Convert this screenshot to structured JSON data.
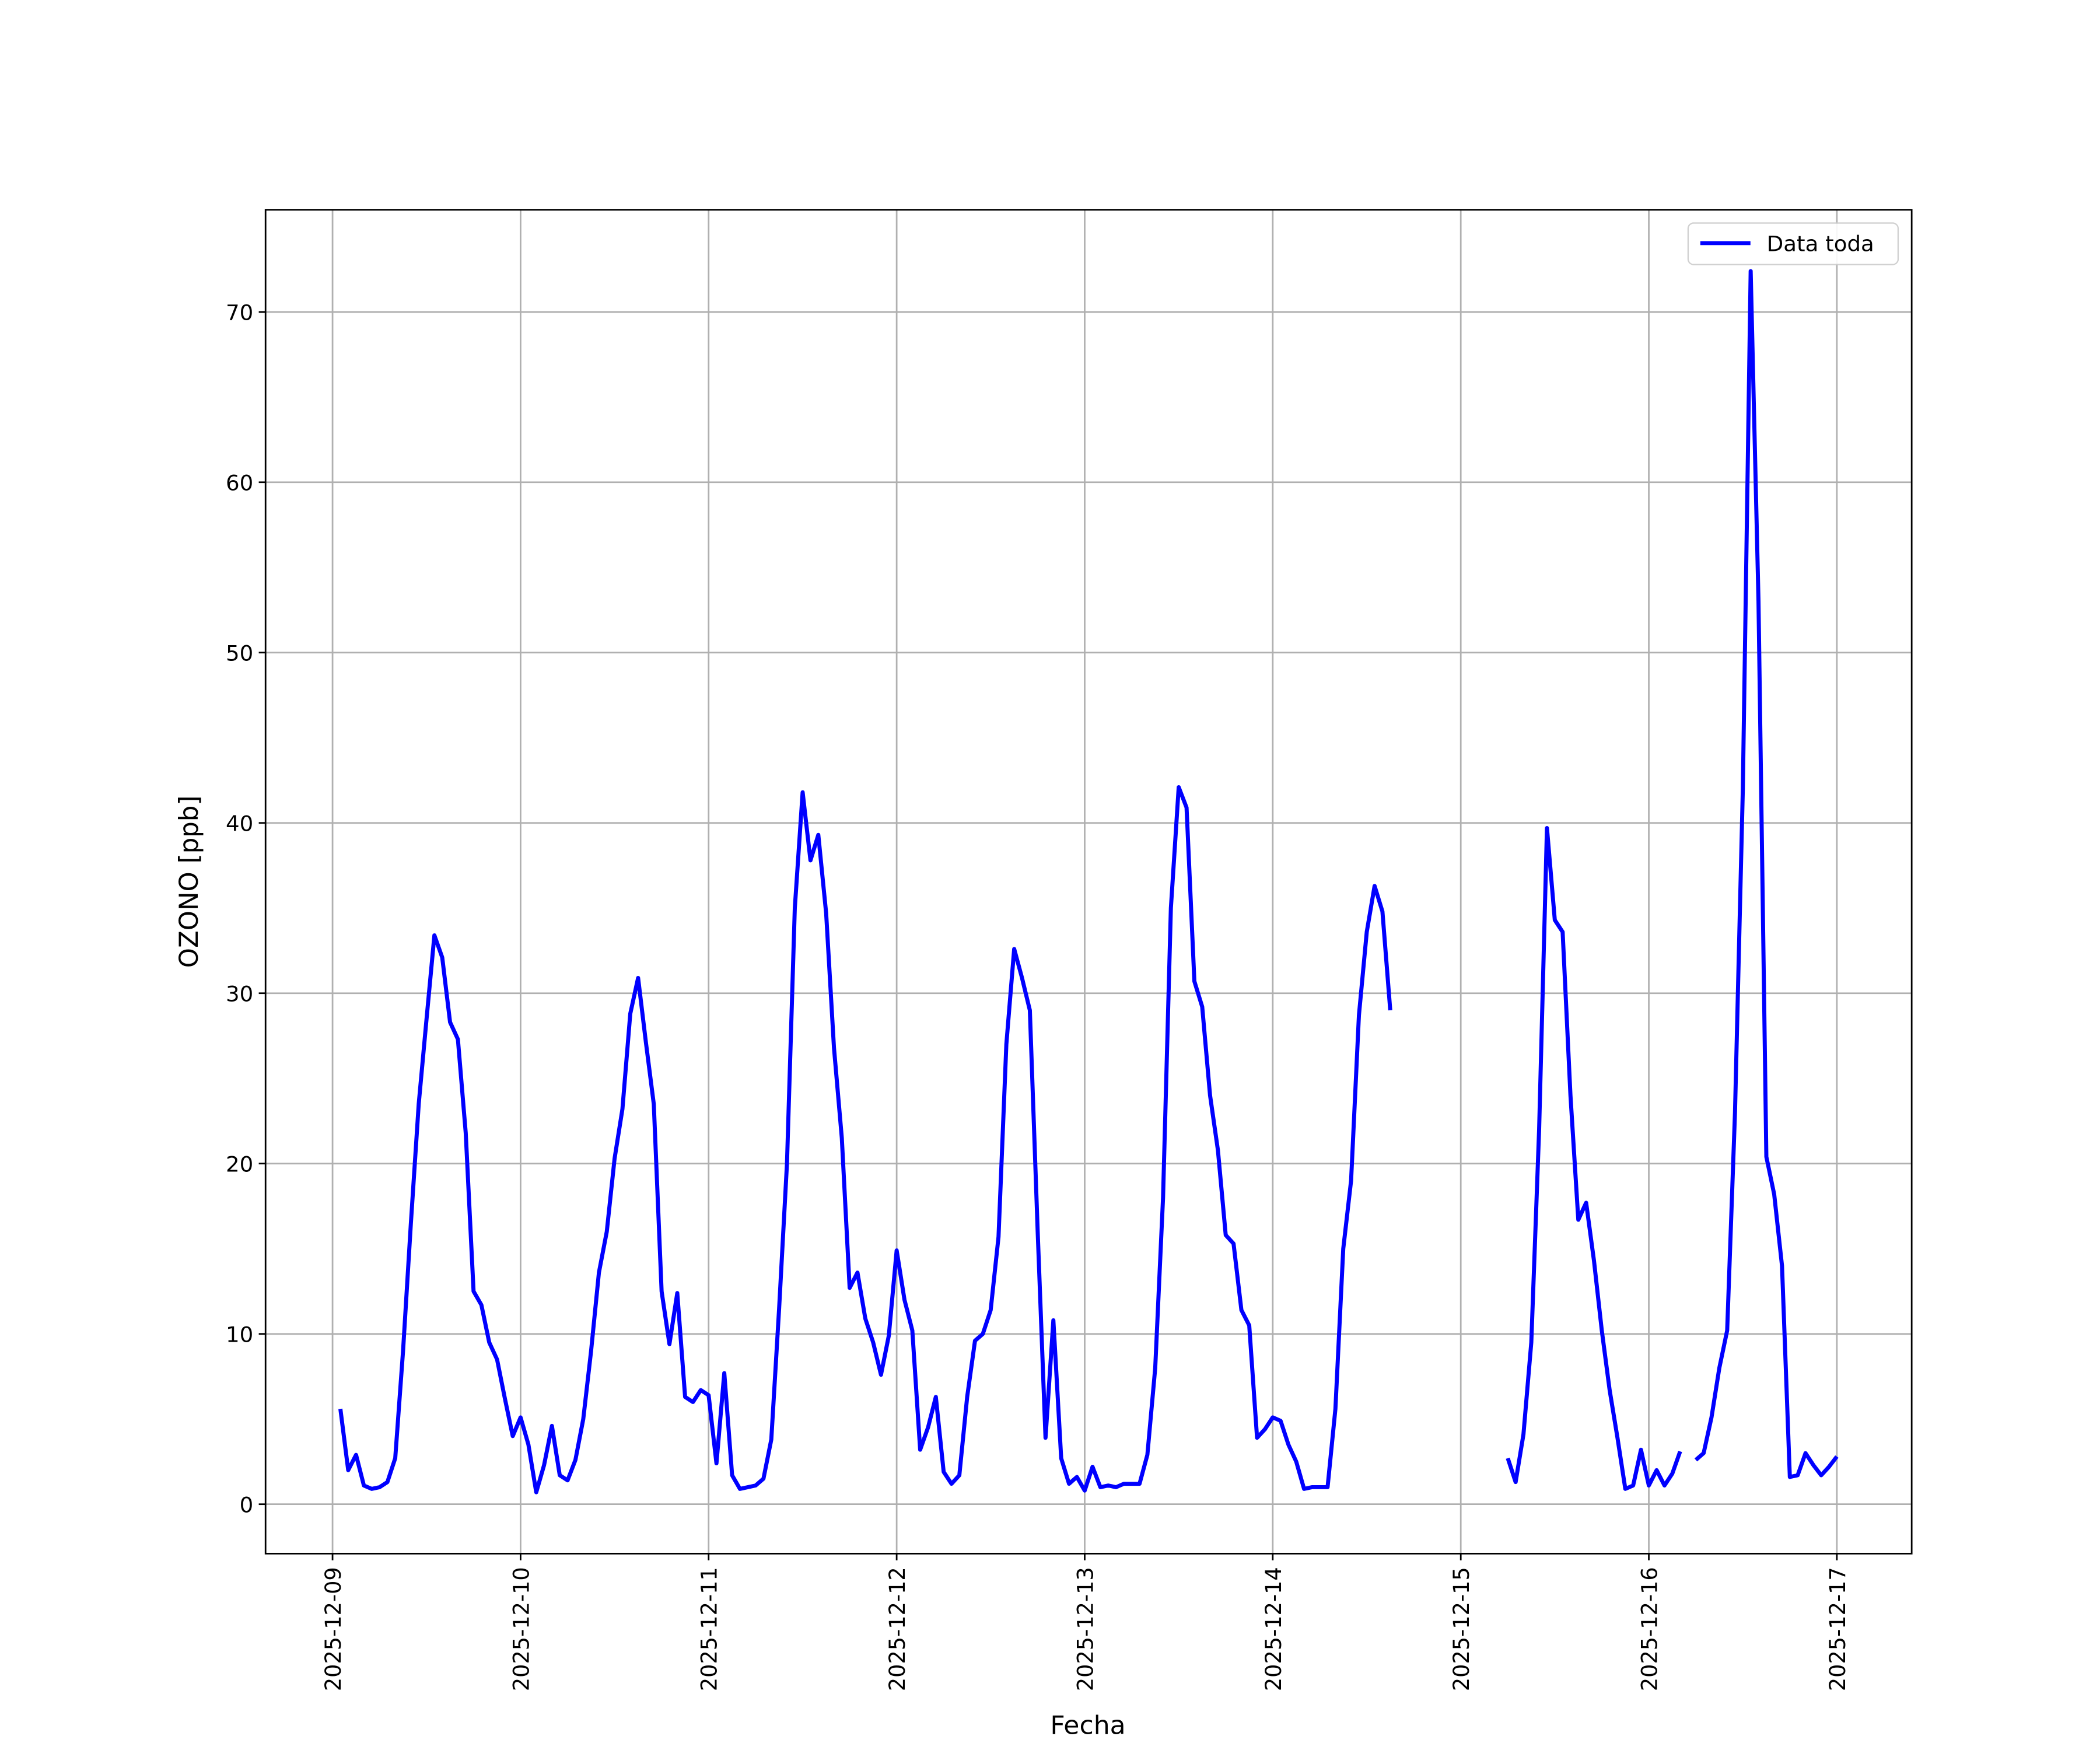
{
  "chart_data": {
    "type": "line",
    "xlabel": "Fecha",
    "ylabel": "OZONO [ppb]",
    "x": [
      "2025-12-09 01:00",
      "2025-12-09 02:00",
      "2025-12-09 03:00",
      "2025-12-09 04:00",
      "2025-12-09 05:00",
      "2025-12-09 06:00",
      "2025-12-09 07:00",
      "2025-12-09 08:00",
      "2025-12-09 09:00",
      "2025-12-09 10:00",
      "2025-12-09 11:00",
      "2025-12-09 12:00",
      "2025-12-09 13:00",
      "2025-12-09 14:00",
      "2025-12-09 15:00",
      "2025-12-09 16:00",
      "2025-12-09 17:00",
      "2025-12-09 18:00",
      "2025-12-09 19:00",
      "2025-12-09 20:00",
      "2025-12-09 21:00",
      "2025-12-09 22:00",
      "2025-12-09 23:00",
      "2025-12-10 00:00",
      "2025-12-10 01:00",
      "2025-12-10 02:00",
      "2025-12-10 03:00",
      "2025-12-10 04:00",
      "2025-12-10 05:00",
      "2025-12-10 06:00",
      "2025-12-10 07:00",
      "2025-12-10 08:00",
      "2025-12-10 09:00",
      "2025-12-10 10:00",
      "2025-12-10 11:00",
      "2025-12-10 12:00",
      "2025-12-10 13:00",
      "2025-12-10 14:00",
      "2025-12-10 15:00",
      "2025-12-10 16:00",
      "2025-12-10 17:00",
      "2025-12-10 18:00",
      "2025-12-10 19:00",
      "2025-12-10 20:00",
      "2025-12-10 21:00",
      "2025-12-10 22:00",
      "2025-12-10 23:00",
      "2025-12-11 00:00",
      "2025-12-11 01:00",
      "2025-12-11 02:00",
      "2025-12-11 03:00",
      "2025-12-11 04:00",
      "2025-12-11 05:00",
      "2025-12-11 06:00",
      "2025-12-11 07:00",
      "2025-12-11 08:00",
      "2025-12-11 09:00",
      "2025-12-11 10:00",
      "2025-12-11 11:00",
      "2025-12-11 12:00",
      "2025-12-11 13:00",
      "2025-12-11 14:00",
      "2025-12-11 15:00",
      "2025-12-11 16:00",
      "2025-12-11 17:00",
      "2025-12-11 18:00",
      "2025-12-11 19:00",
      "2025-12-11 20:00",
      "2025-12-11 21:00",
      "2025-12-11 22:00",
      "2025-12-11 23:00",
      "2025-12-12 00:00",
      "2025-12-12 01:00",
      "2025-12-12 02:00",
      "2025-12-12 03:00",
      "2025-12-12 04:00",
      "2025-12-12 05:00",
      "2025-12-12 06:00",
      "2025-12-12 07:00",
      "2025-12-12 08:00",
      "2025-12-12 09:00",
      "2025-12-12 10:00",
      "2025-12-12 11:00",
      "2025-12-12 12:00",
      "2025-12-12 13:00",
      "2025-12-12 14:00",
      "2025-12-12 15:00",
      "2025-12-12 16:00",
      "2025-12-12 17:00",
      "2025-12-12 18:00",
      "2025-12-12 19:00",
      "2025-12-12 20:00",
      "2025-12-12 21:00",
      "2025-12-12 22:00",
      "2025-12-12 23:00",
      "2025-12-13 00:00",
      "2025-12-13 01:00",
      "2025-12-13 02:00",
      "2025-12-13 03:00",
      "2025-12-13 04:00",
      "2025-12-13 05:00",
      "2025-12-13 06:00",
      "2025-12-13 07:00",
      "2025-12-13 08:00",
      "2025-12-13 09:00",
      "2025-12-13 10:00",
      "2025-12-13 11:00",
      "2025-12-13 12:00",
      "2025-12-13 13:00",
      "2025-12-13 14:00",
      "2025-12-13 15:00",
      "2025-12-13 16:00",
      "2025-12-13 17:00",
      "2025-12-13 18:00",
      "2025-12-13 19:00",
      "2025-12-13 20:00",
      "2025-12-13 21:00",
      "2025-12-13 22:00",
      "2025-12-13 23:00",
      "2025-12-14 00:00",
      "2025-12-14 01:00",
      "2025-12-14 02:00",
      "2025-12-14 03:00",
      "2025-12-14 04:00",
      "2025-12-14 05:00",
      "2025-12-14 06:00",
      "2025-12-14 07:00",
      "2025-12-14 08:00",
      "2025-12-14 09:00",
      "2025-12-14 10:00",
      "2025-12-14 11:00",
      "2025-12-14 12:00",
      "2025-12-14 13:00",
      "2025-12-14 14:00",
      "2025-12-14 15:00",
      "2025-12-14 16:00",
      "2025-12-14 17:00",
      "2025-12-14 18:00",
      "2025-12-14 19:00",
      "2025-12-14 20:00",
      "2025-12-14 21:00",
      "2025-12-14 22:00",
      "2025-12-14 23:00",
      "2025-12-15 00:00",
      "2025-12-15 01:00",
      "2025-12-15 02:00",
      "2025-12-15 03:00",
      "2025-12-15 04:00",
      "2025-12-15 05:00",
      "2025-12-15 06:00",
      "2025-12-15 07:00",
      "2025-12-15 08:00",
      "2025-12-15 09:00",
      "2025-12-15 10:00",
      "2025-12-15 11:00",
      "2025-12-15 12:00",
      "2025-12-15 13:00",
      "2025-12-15 14:00",
      "2025-12-15 15:00",
      "2025-12-15 16:00",
      "2025-12-15 17:00",
      "2025-12-15 18:00",
      "2025-12-15 19:00",
      "2025-12-15 20:00",
      "2025-12-15 21:00",
      "2025-12-15 22:00",
      "2025-12-15 23:00",
      "2025-12-16 00:00",
      "2025-12-16 01:00",
      "2025-12-16 02:00",
      "2025-12-16 03:00",
      "2025-12-16 04:00",
      "2025-12-16 05:00",
      "2025-12-16 06:00",
      "2025-12-16 07:00",
      "2025-12-16 08:00",
      "2025-12-16 09:00",
      "2025-12-16 10:00",
      "2025-12-16 11:00",
      "2025-12-16 12:00",
      "2025-12-16 13:00",
      "2025-12-16 14:00",
      "2025-12-16 15:00",
      "2025-12-16 16:00",
      "2025-12-16 17:00",
      "2025-12-16 18:00",
      "2025-12-16 19:00",
      "2025-12-16 20:00",
      "2025-12-16 21:00",
      "2025-12-16 22:00",
      "2025-12-16 23:00",
      "2025-12-17 00:00"
    ],
    "series": [
      {
        "name": "Data toda",
        "color": "#0000ff",
        "values": [
          5.6,
          2.0,
          2.9,
          1.1,
          0.9,
          1.0,
          1.3,
          2.7,
          9.0,
          16.5,
          23.5,
          28.5,
          33.4,
          32.1,
          28.3,
          27.3,
          21.8,
          12.5,
          11.7,
          9.5,
          8.5,
          6.2,
          4.0,
          5.1,
          3.5,
          0.7,
          2.3,
          4.6,
          1.7,
          1.4,
          2.6,
          5.0,
          9.0,
          13.6,
          16.0,
          20.3,
          23.2,
          28.8,
          30.9,
          27.1,
          23.5,
          12.5,
          9.4,
          12.4,
          6.3,
          6.0,
          6.7,
          6.4,
          2.4,
          7.7,
          1.7,
          0.9,
          1.0,
          1.1,
          1.5,
          3.8,
          11.5,
          20.0,
          35.0,
          41.8,
          37.8,
          39.3,
          34.7,
          26.8,
          21.5,
          12.7,
          13.6,
          10.9,
          9.5,
          7.6,
          9.9,
          14.9,
          12.0,
          10.2,
          3.2,
          4.5,
          6.3,
          1.9,
          1.2,
          1.7,
          6.3,
          9.6,
          10.0,
          11.4,
          15.7,
          27.0,
          32.6,
          30.9,
          29.0,
          16.0,
          3.9,
          10.8,
          2.7,
          1.2,
          1.6,
          0.8,
          2.2,
          1.0,
          1.1,
          1.0,
          1.2,
          1.2,
          1.2,
          2.9,
          8.0,
          18.0,
          35.0,
          42.1,
          40.9,
          30.7,
          29.2,
          24.0,
          20.8,
          15.8,
          15.3,
          11.4,
          10.5,
          3.9,
          4.4,
          5.1,
          4.9,
          3.5,
          2.5,
          0.9,
          1.0,
          1.0,
          1.0,
          5.6,
          15.0,
          19.0,
          28.7,
          33.6,
          36.3,
          34.8,
          29.0,
          null,
          null,
          null,
          null,
          null,
          null,
          null,
          null,
          null,
          null,
          null,
          null,
          null,
          null,
          2.7,
          1.3,
          4.1,
          9.5,
          22.0,
          39.7,
          34.3,
          33.6,
          24.0,
          16.7,
          17.7,
          14.3,
          10.2,
          6.7,
          3.9,
          0.9,
          1.1,
          3.2,
          1.1,
          2.0,
          1.1,
          1.8,
          3.1,
          null,
          2.6,
          3.0,
          5.1,
          8.0,
          10.2,
          23.0,
          42.0,
          72.4,
          53.0,
          20.4,
          18.2,
          14.0,
          1.6,
          1.7,
          3.0,
          2.3,
          1.7,
          2.2,
          2.8
        ]
      }
    ],
    "xlim": [
      "2025-12-08 15:27",
      "2025-12-17 09:33"
    ],
    "xticks": [
      "2025-12-09",
      "2025-12-10",
      "2025-12-11",
      "2025-12-12",
      "2025-12-13",
      "2025-12-14",
      "2025-12-15",
      "2025-12-16",
      "2025-12-17"
    ],
    "ylim": [
      -2.9,
      76.0
    ],
    "yticks": [
      0,
      10,
      20,
      30,
      40,
      50,
      60,
      70
    ],
    "grid": true,
    "legend": "upper right"
  }
}
